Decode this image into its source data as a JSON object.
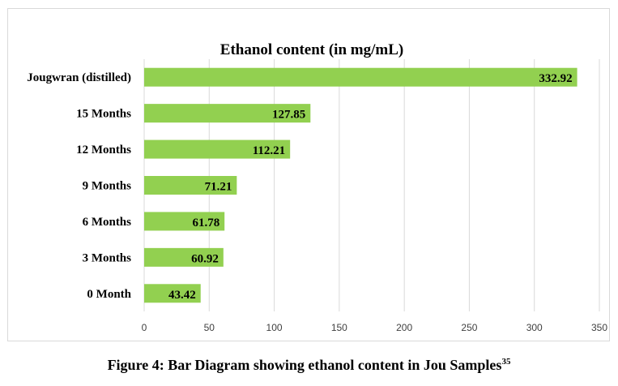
{
  "caption": {
    "text": "Figure 4: Bar Diagram showing ethanol content in Jou Samples",
    "superscript": "35"
  },
  "colors": {
    "bar": "#92d050",
    "grid": "#d9d9d9",
    "axis_text": "#404040"
  },
  "chart_data": {
    "type": "bar",
    "orientation": "horizontal",
    "title": "Ethanol content (in mg/mL)",
    "categories": [
      "Jougwran (distilled)",
      "15 Months",
      "12 Months",
      "9 Months",
      "6 Months",
      "3 Months",
      "0 Month"
    ],
    "values": [
      332.92,
      127.85,
      112.21,
      71.21,
      61.78,
      60.92,
      43.42
    ],
    "data_labels": [
      "332.92",
      "127.85",
      "112.21",
      "71.21",
      "61.78",
      "60.92",
      "43.42"
    ],
    "xticks": [
      "0",
      "50",
      "100",
      "150",
      "200",
      "250",
      "300",
      "350"
    ],
    "xlim": [
      0,
      350
    ],
    "xlabel": "",
    "ylabel": "",
    "grid": "vertical",
    "legend": "none"
  }
}
